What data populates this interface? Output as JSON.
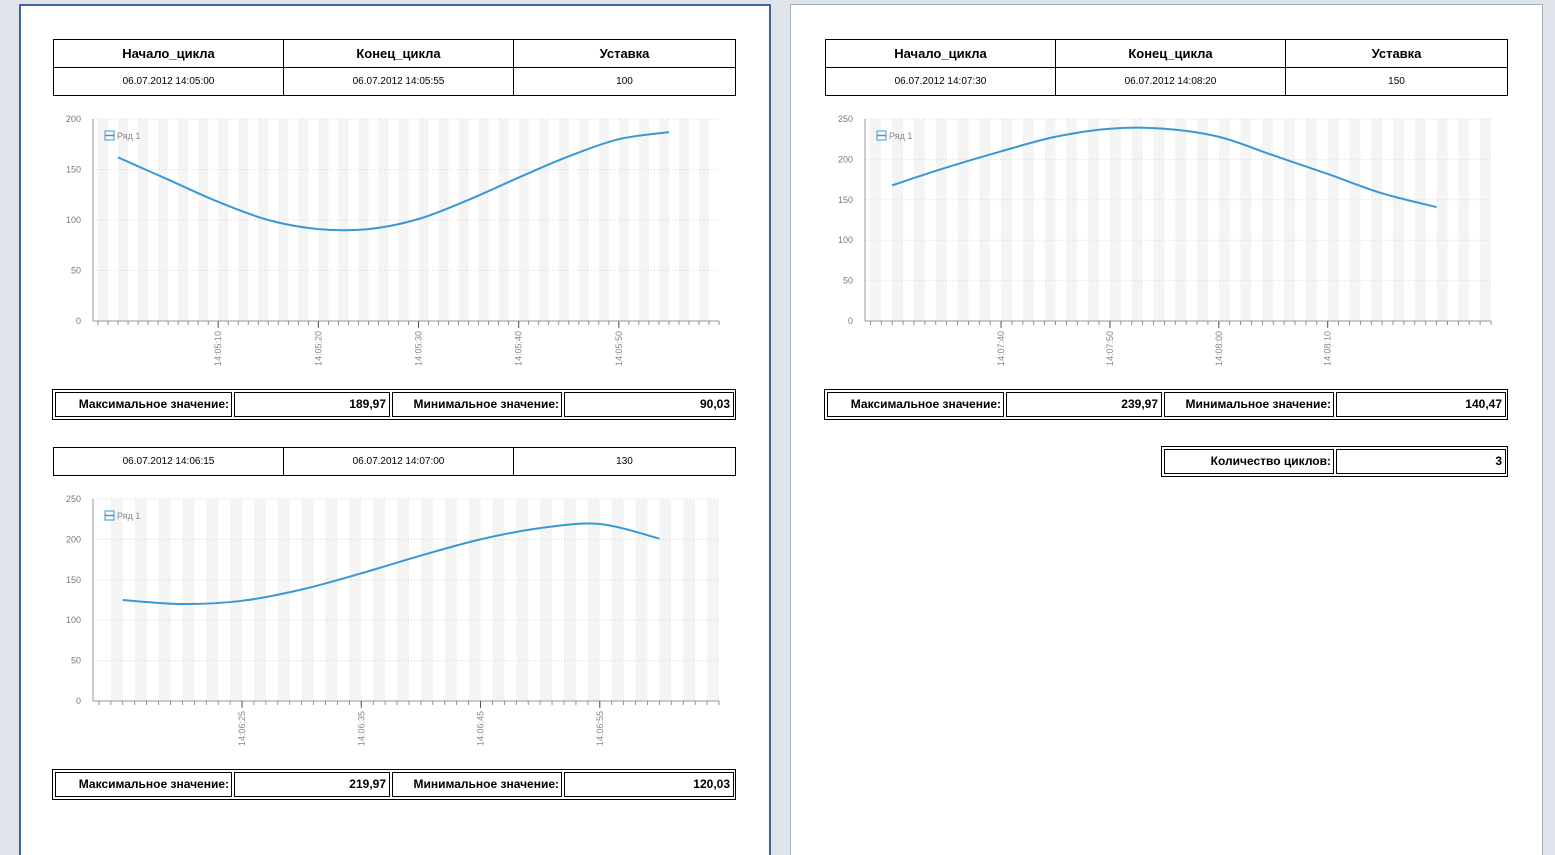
{
  "headers": {
    "start": "Начало_цикла",
    "end": "Конец_цикла",
    "setpoint": "Уставка"
  },
  "labels": {
    "max": "Максимальное значение:",
    "min": "Минимальное значение:",
    "cycles": "Количество циклов:"
  },
  "legend": {
    "series_name": "Ряд 1"
  },
  "colors": {
    "line": "#3a97d6",
    "page_border": "#3f63a6",
    "band": "#f4f4f4"
  },
  "cycles": [
    {
      "start": "06.07.2012 14:05:00",
      "end": "06.07.2012 14:05:55",
      "setpoint": "100",
      "max": "189,97",
      "min": "90,03"
    },
    {
      "start": "06.07.2012 14:06:15",
      "end": "06.07.2012 14:07:00",
      "setpoint": "130",
      "max": "219,97",
      "min": "120,03"
    },
    {
      "start": "06.07.2012 14:07:30",
      "end": "06.07.2012 14:08:20",
      "setpoint": "150",
      "max": "239,97",
      "min": "140,47"
    }
  ],
  "summary": {
    "cycles_count": "3"
  },
  "chart_data": [
    {
      "type": "line",
      "series": [
        {
          "name": "Ряд 1",
          "x": [
            "14:05:00",
            "14:05:05",
            "14:05:10",
            "14:05:15",
            "14:05:20",
            "14:05:25",
            "14:05:30",
            "14:05:35",
            "14:05:40",
            "14:05:45",
            "14:05:50",
            "14:05:55"
          ],
          "values": [
            162,
            140,
            118,
            100,
            91,
            91,
            101,
            120,
            142,
            163,
            180,
            187
          ]
        }
      ],
      "x_ticks": [
        "14:05:10",
        "14:05:20",
        "14:05:30",
        "14:05:40",
        "14:05:50"
      ],
      "y_ticks": [
        0,
        50,
        100,
        150,
        200
      ],
      "ylim": [
        0,
        200
      ],
      "legend": "top-left",
      "grid": true
    },
    {
      "type": "line",
      "series": [
        {
          "name": "Ряд 1",
          "x": [
            "14:06:15",
            "14:06:20",
            "14:06:25",
            "14:06:30",
            "14:06:35",
            "14:06:40",
            "14:06:45",
            "14:06:50",
            "14:06:55",
            "14:07:00"
          ],
          "values": [
            125,
            120,
            124,
            138,
            158,
            180,
            200,
            214,
            219,
            201
          ]
        }
      ],
      "x_ticks": [
        "14:06:25",
        "14:06:35",
        "14:06:45",
        "14:06:55"
      ],
      "y_ticks": [
        0,
        50,
        100,
        150,
        200,
        250
      ],
      "ylim": [
        0,
        250
      ],
      "legend": "top-left",
      "grid": true
    },
    {
      "type": "line",
      "series": [
        {
          "name": "Ряд 1",
          "x": [
            "14:07:30",
            "14:07:35",
            "14:07:40",
            "14:07:45",
            "14:07:50",
            "14:07:55",
            "14:08:00",
            "14:08:05",
            "14:08:10",
            "14:08:15",
            "14:08:20"
          ],
          "values": [
            168,
            190,
            210,
            228,
            238,
            238,
            228,
            205,
            182,
            158,
            141
          ]
        }
      ],
      "x_ticks": [
        "14:07:40",
        "14:07:50",
        "14:08:00",
        "14:08:10"
      ],
      "y_ticks": [
        0,
        50,
        100,
        150,
        200,
        250
      ],
      "ylim": [
        0,
        250
      ],
      "legend": "top-left",
      "grid": true
    }
  ]
}
